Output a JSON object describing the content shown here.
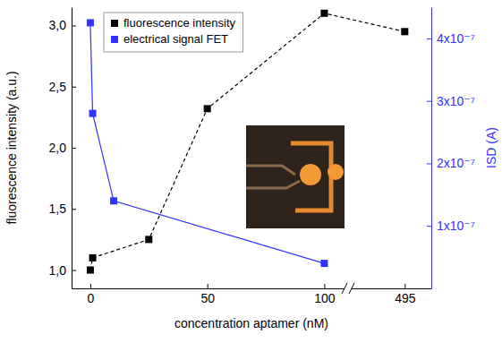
{
  "chart_data": {
    "type": "line",
    "x_label": "concentration aptamer (nM)",
    "y_label": "fluorescence intensity (a.u.)",
    "y2_label": "ISD (A)",
    "xlim": [
      -8,
      510
    ],
    "xticks": [
      0,
      50,
      100,
      495
    ],
    "ylim": [
      0.85,
      3.15
    ],
    "yticks": [
      {
        "value": 1,
        "label": "1,0"
      },
      {
        "value": 1.5,
        "label": "1,5"
      },
      {
        "value": 2,
        "label": "2,0"
      },
      {
        "value": 2.5,
        "label": "2,5"
      },
      {
        "value": 3,
        "label": "3,0"
      }
    ],
    "y2lim": [
      0,
      4.5e-07
    ],
    "y2ticks": [
      {
        "value": 1e-07,
        "label": "1x10⁻⁷"
      },
      {
        "value": 2e-07,
        "label": "2x10⁻⁷"
      },
      {
        "value": 3e-07,
        "label": "3x10⁻⁷"
      },
      {
        "value": 4e-07,
        "label": "4x10⁻⁷"
      }
    ],
    "legend": "upper left",
    "series": [
      {
        "name": "fluorescence intensity",
        "color": "#000000",
        "marker": "square",
        "line_style": "dashed",
        "axis": "y",
        "x": [
          0,
          1,
          25,
          50,
          100,
          495
        ],
        "values": [
          1.0,
          1.1,
          1.25,
          2.32,
          3.1,
          2.95
        ]
      },
      {
        "name": "electrical signal FET",
        "color": "#3232ff",
        "marker": "square",
        "line_style": "solid",
        "axis": "y2",
        "x": [
          0,
          1,
          10,
          100
        ],
        "values": [
          4.25e-07,
          2.8e-07,
          1.4e-07,
          4e-08
        ]
      }
    ]
  }
}
